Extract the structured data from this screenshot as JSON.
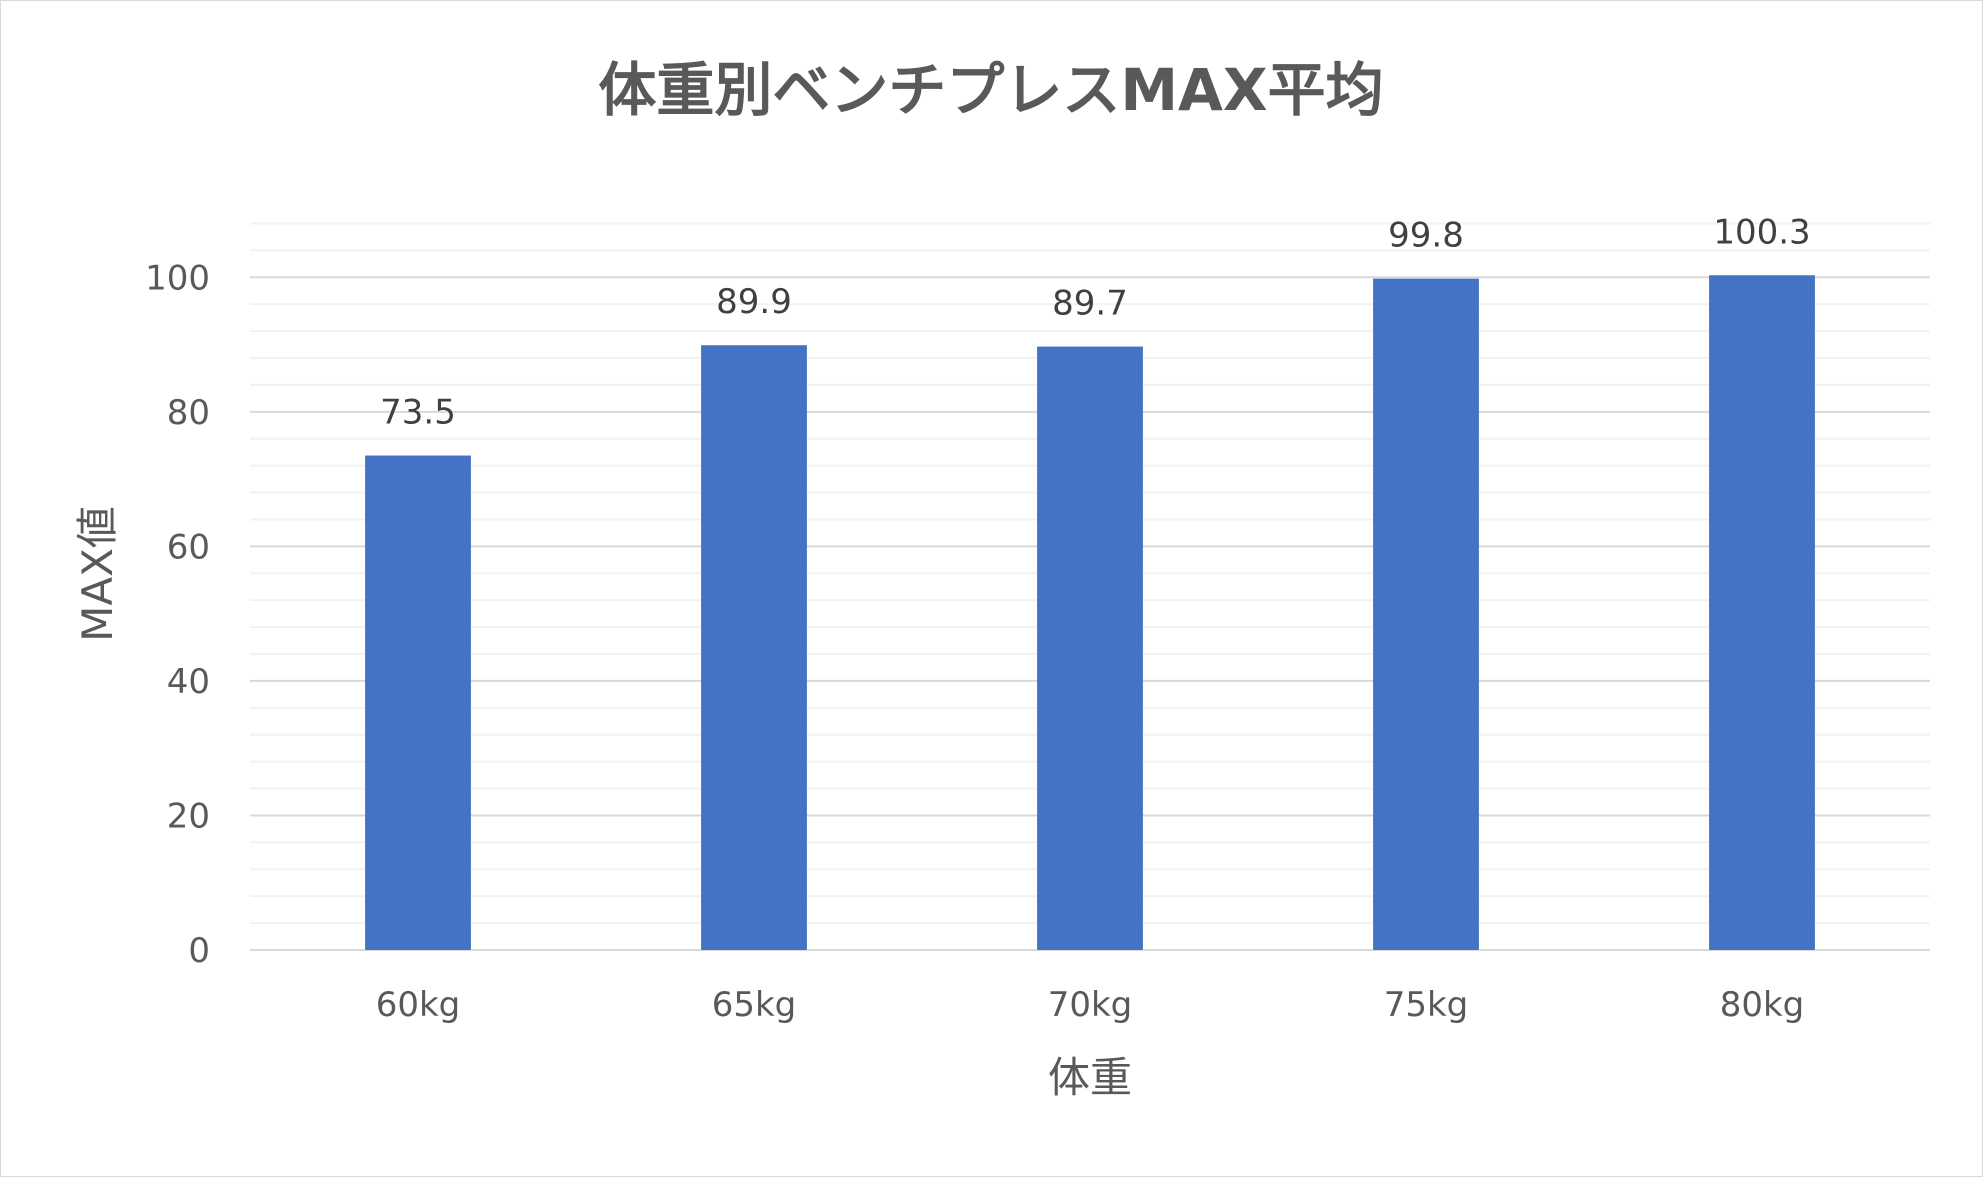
{
  "chart_data": {
    "type": "bar",
    "title": "体重別ベンチプレスMAX平均",
    "xlabel": "体重",
    "ylabel": "MAX値",
    "categories": [
      "60kg",
      "65kg",
      "70kg",
      "75kg",
      "80kg"
    ],
    "values": [
      73.5,
      89.9,
      89.7,
      99.8,
      100.3
    ],
    "data_labels": [
      "73.5",
      "89.9",
      "89.7",
      "99.8",
      "100.3"
    ],
    "ylim": [
      0,
      110
    ],
    "y_ticks": [
      0,
      20,
      40,
      60,
      80,
      100
    ],
    "y_tick_labels": [
      "0",
      "20",
      "40",
      "60",
      "80",
      "100"
    ],
    "major_grid_step": 20,
    "minor_grid_step": 4,
    "grid": true,
    "legend": "none",
    "bar_color": "#4472C4",
    "major_grid_color": "#d9d9d9",
    "minor_grid_color": "#f2f2f2"
  }
}
